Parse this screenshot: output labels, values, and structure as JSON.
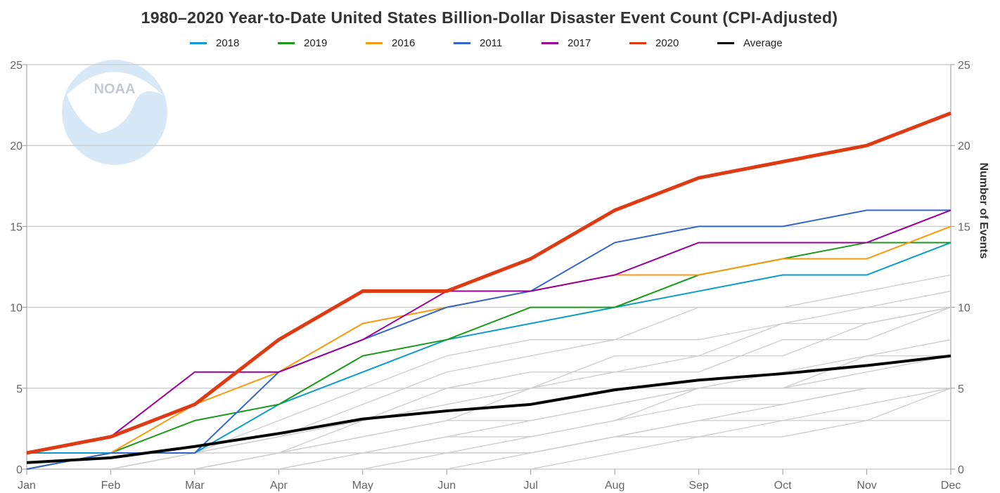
{
  "chart_data": {
    "type": "line",
    "title": "1980–2020 Year-to-Date United States Billion-Dollar Disaster Event Count (CPI-Adjusted)",
    "xlabel": "",
    "ylabel": "",
    "ylabel_right": "Number of Events",
    "categories": [
      "Jan",
      "Feb",
      "Mar",
      "Apr",
      "May",
      "Jun",
      "Jul",
      "Aug",
      "Sep",
      "Oct",
      "Nov",
      "Dec"
    ],
    "ylim": [
      0,
      25
    ],
    "yticks": [
      0,
      5,
      10,
      15,
      20,
      25
    ],
    "grid": true,
    "legend_position": "top-center",
    "watermark": "NOAA",
    "series": [
      {
        "name": "2018",
        "color": "#0b9bcb",
        "width": 2,
        "values": [
          1,
          1,
          1,
          4,
          6,
          8,
          9,
          10,
          11,
          12,
          12,
          14
        ]
      },
      {
        "name": "2019",
        "color": "#1a9a1a",
        "width": 2,
        "values": [
          0,
          1,
          3,
          4,
          7,
          8,
          10,
          10,
          12,
          13,
          14,
          14
        ]
      },
      {
        "name": "2016",
        "color": "#f99a0c",
        "width": 2,
        "values": [
          0,
          1,
          4,
          6,
          9,
          10,
          11,
          12,
          12,
          13,
          13,
          15
        ]
      },
      {
        "name": "2011",
        "color": "#3366cc",
        "width": 2,
        "values": [
          0,
          1,
          1,
          6,
          8,
          10,
          11,
          14,
          15,
          15,
          16,
          16
        ]
      },
      {
        "name": "2017",
        "color": "#990099",
        "width": 2,
        "values": [
          1,
          2,
          6,
          6,
          8,
          11,
          11,
          12,
          14,
          14,
          14,
          16
        ]
      },
      {
        "name": "2020",
        "color": "#e03a12",
        "width": 5,
        "values": [
          1,
          2,
          4,
          8,
          11,
          11,
          13,
          16,
          18,
          19,
          20,
          22
        ]
      },
      {
        "name": "Average",
        "color": "#000000",
        "width": 4,
        "values": [
          0.4,
          0.7,
          1.4,
          2.2,
          3.1,
          3.6,
          4.0,
          4.9,
          5.5,
          5.9,
          6.4,
          7.0
        ]
      }
    ],
    "other_years_color": "#cccccc",
    "other_years": [
      [
        0,
        0,
        1,
        3,
        5,
        7,
        8,
        8,
        10,
        10,
        11,
        12
      ],
      [
        0,
        1,
        1,
        2,
        4,
        6,
        7,
        8,
        8,
        9,
        10,
        11
      ],
      [
        0,
        0,
        0,
        1,
        2,
        3,
        5,
        7,
        7,
        9,
        9,
        10
      ],
      [
        0,
        0,
        1,
        2,
        3,
        5,
        6,
        6,
        7,
        7,
        9,
        10
      ],
      [
        0,
        0,
        0,
        1,
        3,
        4,
        5,
        6,
        6,
        8,
        8,
        10
      ],
      [
        0,
        0,
        1,
        1,
        2,
        3,
        3,
        4,
        5,
        5,
        7,
        8
      ],
      [
        0,
        0,
        0,
        1,
        1,
        2,
        3,
        4,
        5,
        6,
        7,
        7
      ],
      [
        0,
        0,
        0,
        0,
        1,
        1,
        2,
        3,
        5,
        5,
        6,
        7
      ],
      [
        0,
        0,
        0,
        1,
        1,
        2,
        2,
        3,
        4,
        4,
        5,
        5
      ],
      [
        0,
        0,
        0,
        0,
        0,
        1,
        1,
        2,
        3,
        4,
        5,
        5
      ],
      [
        0,
        0,
        0,
        0,
        0,
        0,
        1,
        2,
        3,
        3,
        4,
        5
      ],
      [
        0,
        0,
        0,
        0,
        0,
        0,
        0,
        1,
        2,
        2,
        3,
        3
      ],
      [
        0,
        0,
        0,
        0,
        1,
        1,
        1,
        2,
        2,
        3,
        3,
        5
      ]
    ]
  }
}
